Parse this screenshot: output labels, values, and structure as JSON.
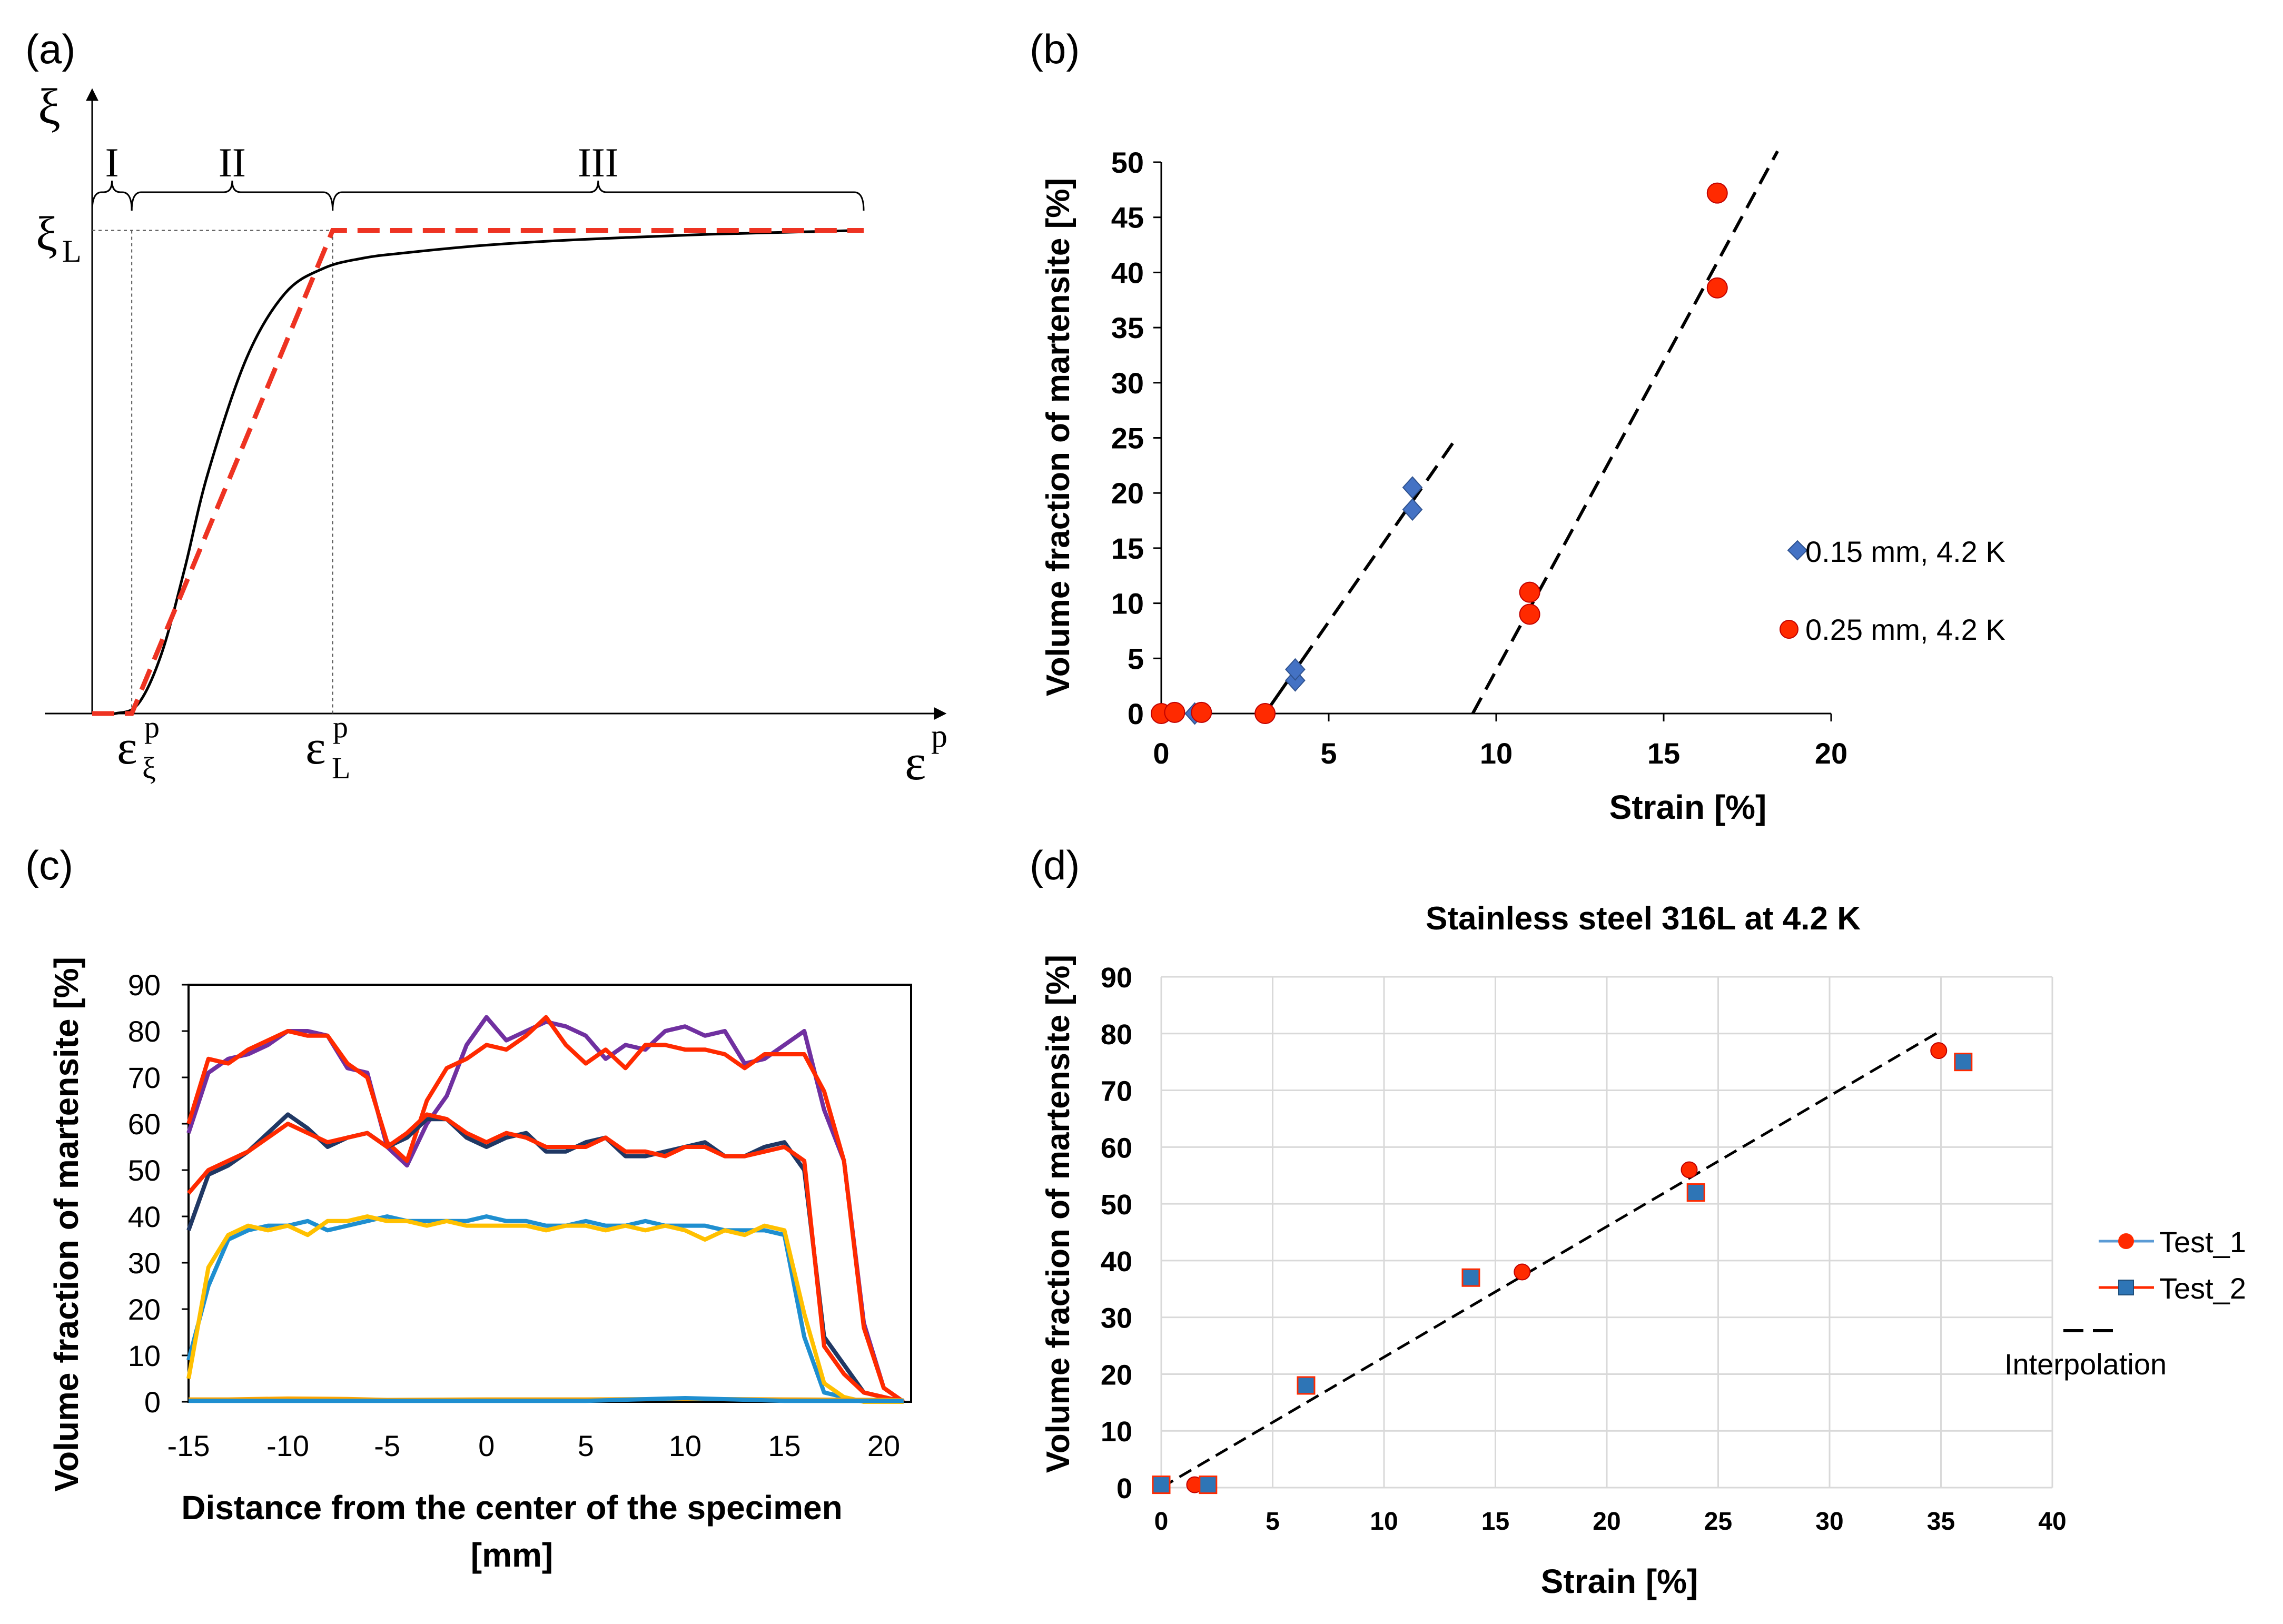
{
  "chart_data": [
    {
      "panel": "(a)",
      "type": "line",
      "title": "",
      "xlabel": "ε",
      "xlabel_sup": "p",
      "ylabel": "ξ",
      "region_labels": [
        "I",
        "II",
        "III"
      ],
      "y_ticks": [
        {
          "base": "ξ",
          "sub": "L"
        }
      ],
      "x_ticks": [
        {
          "base": "ε",
          "sup": "p",
          "sub": "ξ"
        },
        {
          "base": "ε",
          "sup": "p",
          "sub": "L"
        }
      ],
      "xlim": [
        0,
        1
      ],
      "ylim": [
        0,
        1
      ],
      "eps_xi": 0.0513,
      "eps_L": 0.3117,
      "xi_L": 0.9658,
      "series": [
        {
          "name": "smooth",
          "color": "#000000",
          "x": [
            0,
            0.03,
            0.06,
            0.09,
            0.12,
            0.15,
            0.2,
            0.25,
            0.3,
            0.35,
            0.4,
            0.5,
            0.6,
            0.7,
            0.8,
            0.9,
            1.0
          ],
          "y": [
            0,
            0,
            0.02,
            0.12,
            0.29,
            0.48,
            0.71,
            0.84,
            0.89,
            0.91,
            0.92,
            0.935,
            0.945,
            0.952,
            0.958,
            0.962,
            0.966
          ]
        },
        {
          "name": "bilinear",
          "color": "#ee3322",
          "dashed": true,
          "x": [
            0,
            0.0513,
            0.3117,
            1.0
          ],
          "y": [
            0,
            0,
            0.9658,
            0.9658
          ]
        }
      ]
    },
    {
      "panel": "(b)",
      "type": "scatter",
      "xlabel": "Strain [%]",
      "ylabel": "Volume fraction of martensite [%]",
      "xlim": [
        0,
        20
      ],
      "ylim": [
        0,
        50
      ],
      "xticks": [
        0,
        5,
        10,
        15,
        20
      ],
      "yticks": [
        0,
        5,
        10,
        15,
        20,
        25,
        30,
        35,
        40,
        45,
        50
      ],
      "series": [
        {
          "name": "0.15 mm, 4.2 K",
          "marker": "diamond",
          "color": "#4472c4",
          "x": [
            1.0,
            4.0,
            4.0,
            7.5,
            7.5
          ],
          "y": [
            0,
            3,
            4,
            18.5,
            20.5
          ]
        },
        {
          "name": "0.25 mm, 4.2 K",
          "marker": "circle",
          "color": "#ff2a00",
          "x": [
            0,
            0.4,
            1.2,
            3.1,
            11.0,
            11.0,
            16.6,
            16.6
          ],
          "y": [
            0,
            0.1,
            0.1,
            0,
            9,
            11,
            47.2,
            38.6
          ]
        }
      ],
      "fits": [
        {
          "x": [
            3.1,
            8.7
          ],
          "y": [
            0,
            24.5
          ],
          "solid_until": 4.2
        },
        {
          "x": [
            9.3,
            18.4
          ],
          "y": [
            0,
            51
          ]
        }
      ]
    },
    {
      "panel": "(c)",
      "type": "line",
      "xlabel": "Distance from the center of the specimen [mm]",
      "ylabel": "Volume fraction of martensite [%]",
      "xlim": [
        -15,
        21.7
      ],
      "ylim": [
        0,
        90
      ],
      "xticks": [
        -15,
        -10,
        -5,
        0,
        5,
        10,
        15,
        20
      ],
      "yticks": [
        0,
        10,
        20,
        30,
        40,
        50,
        60,
        70,
        80,
        90
      ],
      "series": [
        {
          "name": "purple",
          "color": "#7030a0",
          "x": [
            -15,
            -14,
            -13,
            -12,
            -11,
            -10,
            -9,
            -8,
            -7,
            -6,
            -5,
            -4,
            -3,
            -2,
            -1,
            0,
            1,
            2,
            3,
            4,
            5,
            6,
            7,
            8,
            9,
            10,
            11,
            12,
            13,
            14,
            15,
            16,
            17,
            18,
            19,
            20,
            21
          ],
          "y": [
            58,
            71,
            74,
            75,
            77,
            80,
            80,
            79,
            72,
            71,
            55,
            51,
            60,
            66,
            77,
            83,
            78,
            80,
            82,
            81,
            79,
            74,
            77,
            76,
            80,
            81,
            79,
            80,
            73,
            74,
            77,
            80,
            63,
            52,
            17,
            3,
            0
          ]
        },
        {
          "name": "red-high",
          "color": "#ff2a00",
          "x": [
            -15,
            -14,
            -13,
            -12,
            -11,
            -10,
            -9,
            -8,
            -7,
            -6,
            -5,
            -4,
            -3,
            -2,
            -1,
            0,
            1,
            2,
            3,
            4,
            5,
            6,
            7,
            8,
            9,
            10,
            11,
            12,
            13,
            14,
            15,
            16,
            17,
            18,
            19,
            20,
            21
          ],
          "y": [
            60,
            74,
            73,
            76,
            78,
            80,
            79,
            79,
            73,
            70,
            56,
            52,
            65,
            72,
            74,
            77,
            76,
            79,
            83,
            77,
            73,
            76,
            72,
            77,
            77,
            76,
            76,
            75,
            72,
            75,
            75,
            75,
            67,
            52,
            16,
            3,
            0
          ]
        },
        {
          "name": "navy",
          "color": "#203864",
          "x": [
            -15,
            -14,
            -13,
            -12,
            -11,
            -10,
            -9,
            -8,
            -7,
            -6,
            -5,
            -4,
            -3,
            -2,
            -1,
            0,
            1,
            2,
            3,
            4,
            5,
            6,
            7,
            8,
            9,
            10,
            11,
            12,
            13,
            14,
            15,
            16,
            17,
            18,
            19,
            20,
            21
          ],
          "y": [
            37,
            49,
            51,
            54,
            58,
            62,
            59,
            55,
            57,
            58,
            55,
            57,
            61,
            61,
            57,
            55,
            57,
            58,
            54,
            54,
            56,
            57,
            53,
            53,
            54,
            55,
            56,
            53,
            53,
            55,
            56,
            50,
            14,
            8,
            2,
            1,
            0
          ]
        },
        {
          "name": "red-mid",
          "color": "#ff2a00",
          "x": [
            -15,
            -14,
            -13,
            -12,
            -11,
            -10,
            -9,
            -8,
            -7,
            -6,
            -5,
            -4,
            -3,
            -2,
            -1,
            0,
            1,
            2,
            3,
            4,
            5,
            6,
            7,
            8,
            9,
            10,
            11,
            12,
            13,
            14,
            15,
            16,
            17,
            18,
            19,
            20,
            21
          ],
          "y": [
            45,
            50,
            52,
            54,
            57,
            60,
            58,
            56,
            57,
            58,
            55,
            58,
            62,
            61,
            58,
            56,
            58,
            57,
            55,
            55,
            55,
            57,
            54,
            54,
            53,
            55,
            55,
            53,
            53,
            54,
            55,
            52,
            12,
            6,
            2,
            1,
            0
          ]
        },
        {
          "name": "blue",
          "color": "#1f8fd0",
          "x": [
            -15,
            -14,
            -13,
            -12,
            -11,
            -10,
            -9,
            -8,
            -7,
            -6,
            -5,
            -4,
            -3,
            -2,
            -1,
            0,
            1,
            2,
            3,
            4,
            5,
            6,
            7,
            8,
            9,
            10,
            11,
            12,
            13,
            14,
            15,
            16,
            17,
            18,
            19,
            20,
            21
          ],
          "y": [
            9,
            25,
            35,
            37,
            38,
            38,
            39,
            37,
            38,
            39,
            40,
            39,
            39,
            39,
            39,
            40,
            39,
            39,
            38,
            38,
            39,
            38,
            38,
            39,
            38,
            38,
            38,
            37,
            37,
            37,
            36,
            14,
            2,
            1,
            0,
            0,
            0
          ]
        },
        {
          "name": "yellow",
          "color": "#ffc000",
          "x": [
            -15,
            -14,
            -13,
            -12,
            -11,
            -10,
            -9,
            -8,
            -7,
            -6,
            -5,
            -4,
            -3,
            -2,
            -1,
            0,
            1,
            2,
            3,
            4,
            5,
            6,
            7,
            8,
            9,
            10,
            11,
            12,
            13,
            14,
            15,
            16,
            17,
            18,
            19,
            20,
            21
          ],
          "y": [
            5,
            29,
            36,
            38,
            37,
            38,
            36,
            39,
            39,
            40,
            39,
            39,
            38,
            39,
            38,
            38,
            38,
            38,
            37,
            38,
            38,
            37,
            38,
            37,
            38,
            37,
            35,
            37,
            36,
            38,
            37,
            19,
            4,
            1,
            0,
            0,
            0
          ]
        },
        {
          "name": "baseline-orange",
          "color": "#ffa500",
          "x": [
            -15,
            -13,
            -10,
            -7,
            -5,
            0,
            5,
            10,
            15,
            20,
            21
          ],
          "y": [
            0.5,
            0.5,
            0.7,
            0.6,
            0.4,
            0.5,
            0.5,
            0.6,
            0.5,
            0.4,
            0.3
          ]
        },
        {
          "name": "baseline-blue",
          "color": "#1f8fd0",
          "x": [
            -15,
            -10,
            -5,
            0,
            5,
            10,
            15,
            20,
            21
          ],
          "y": [
            0.2,
            0.2,
            0.2,
            0.2,
            0.2,
            0.8,
            0.2,
            0.2,
            0.2
          ]
        }
      ]
    },
    {
      "panel": "(d)",
      "type": "scatter",
      "title": "Stainless steel 316L at 4.2 K",
      "xlabel": "Strain [%]",
      "ylabel": "Volume fraction of martensite [%]",
      "xlim": [
        0,
        40
      ],
      "ylim": [
        0,
        90
      ],
      "grid": true,
      "xticks": [
        0,
        5,
        10,
        15,
        20,
        25,
        30,
        35,
        40
      ],
      "yticks": [
        0,
        10,
        20,
        30,
        40,
        50,
        60,
        70,
        80,
        90
      ],
      "legend_position": "right",
      "series": [
        {
          "name": "Test_1",
          "marker": "circle",
          "fill": "#ff2a00",
          "line": "#5b9bd5",
          "x": [
            0,
            1.5,
            16.2,
            23.7,
            34.9
          ],
          "y": [
            0.5,
            0.5,
            38,
            56,
            77
          ]
        },
        {
          "name": "Test_2",
          "marker": "square",
          "fill": "#2e75b6",
          "line": "#ff2a00",
          "x": [
            0,
            2.1,
            6.5,
            13.9,
            24.0,
            36.0
          ],
          "y": [
            0.5,
            0.5,
            18,
            37,
            52,
            75
          ]
        },
        {
          "name": "Interpolation",
          "line": "#000000",
          "dashed": true,
          "x": [
            0,
            35
          ],
          "y": [
            0,
            80.5
          ]
        }
      ]
    }
  ],
  "panels": {
    "a": {
      "label": "(a)"
    },
    "b": {
      "label": "(b)"
    },
    "c": {
      "label": "(c)"
    },
    "d": {
      "label": "(d)"
    }
  }
}
